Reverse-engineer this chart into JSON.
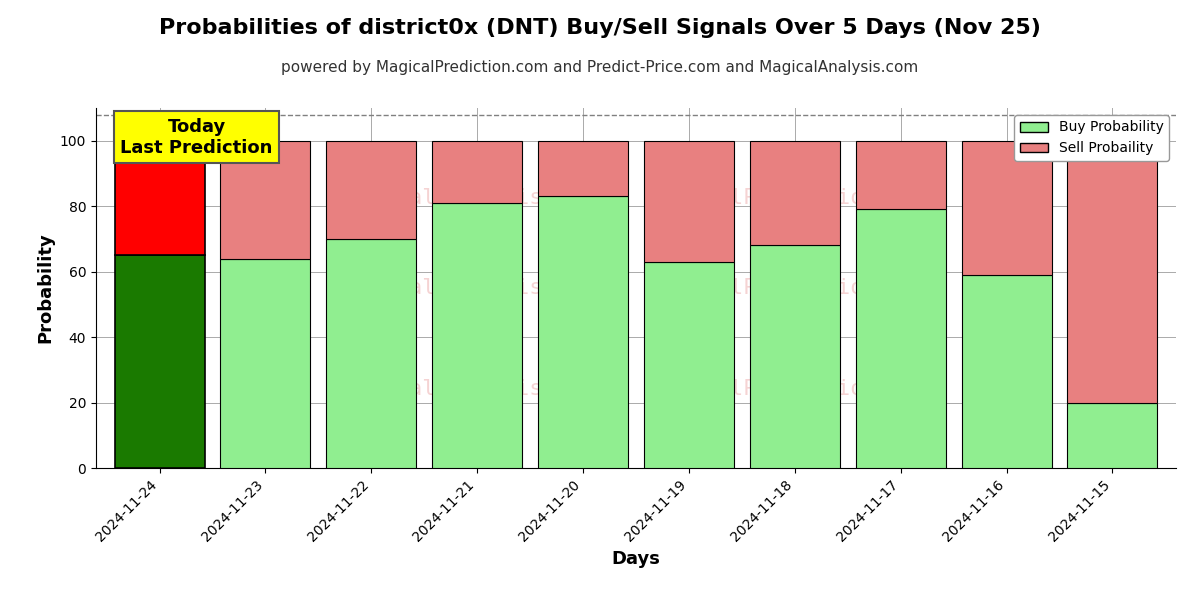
{
  "title": "Probabilities of district0x (DNT) Buy/Sell Signals Over 5 Days (Nov 25)",
  "subtitle": "powered by MagicalPrediction.com and Predict-Price.com and MagicalAnalysis.com",
  "xlabel": "Days",
  "ylabel": "Probability",
  "categories": [
    "2024-11-24",
    "2024-11-23",
    "2024-11-22",
    "2024-11-21",
    "2024-11-20",
    "2024-11-19",
    "2024-11-18",
    "2024-11-17",
    "2024-11-16",
    "2024-11-15"
  ],
  "buy_values": [
    65,
    64,
    70,
    81,
    83,
    63,
    68,
    79,
    59,
    20
  ],
  "sell_values": [
    35,
    36,
    30,
    19,
    17,
    37,
    32,
    21,
    41,
    80
  ],
  "today_buy_color": "#1a7a00",
  "today_sell_color": "#ff0000",
  "normal_buy_color": "#90ee90",
  "normal_sell_color": "#e88080",
  "today_annotation": "Today\nLast Prediction",
  "today_annotation_bg": "#ffff00",
  "bar_edge_color": "#000000",
  "ylim": [
    0,
    110
  ],
  "yticks": [
    0,
    20,
    40,
    60,
    80,
    100
  ],
  "dashed_line_y": 108,
  "legend_buy_label": "Buy Probability",
  "legend_sell_label": "Sell Probaility",
  "bg_color": "#ffffff",
  "grid_color": "#aaaaaa",
  "title_fontsize": 16,
  "subtitle_fontsize": 11,
  "label_fontsize": 13,
  "tick_fontsize": 10
}
